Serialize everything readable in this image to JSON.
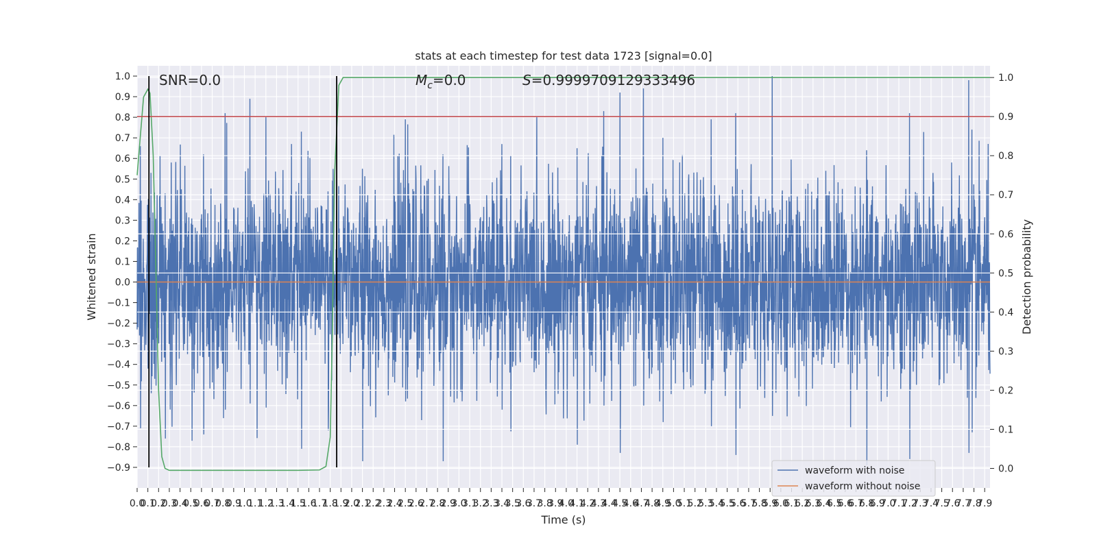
{
  "chart_data": {
    "type": "line",
    "title": "stats at each timestep for test data 1723 [signal=0.0]",
    "xlabel": "Time (s)",
    "ylabel": "Whitened strain",
    "y2label": "Detection probability",
    "annotations": {
      "snr": "SNR=0.0",
      "mc_symbol": "M",
      "mc_sub": "c",
      "mc_value": "=0.0",
      "s_symbol": "S",
      "s_value": "=0.9999709129333496"
    },
    "xlim": [
      0.0,
      7.95
    ],
    "ylim": [
      -1.0,
      1.05
    ],
    "y2lim": [
      -0.05,
      1.03
    ],
    "x_ticks": [
      "0.0",
      "0.1",
      "0.2",
      "0.3",
      "0.4",
      "0.5",
      "0.6",
      "0.7",
      "0.8",
      "0.9",
      "1.0",
      "1.1",
      "1.2",
      "1.3",
      "1.4",
      "1.5",
      "1.6",
      "1.7",
      "1.8",
      "1.9",
      "2.0",
      "2.1",
      "2.2",
      "2.3",
      "2.4",
      "2.5",
      "2.6",
      "2.7",
      "2.8",
      "2.9",
      "3.0",
      "3.1",
      "3.2",
      "3.3",
      "3.4",
      "3.5",
      "3.6",
      "3.7",
      "3.8",
      "3.9",
      "4.0",
      "4.1",
      "4.2",
      "4.3",
      "4.4",
      "4.5",
      "4.6",
      "4.7",
      "4.8",
      "4.9",
      "5.0",
      "5.1",
      "5.2",
      "5.3",
      "5.4",
      "5.5",
      "5.6",
      "5.7",
      "5.8",
      "5.9",
      "6.0",
      "6.1",
      "6.2",
      "6.3",
      "6.4",
      "6.5",
      "6.6",
      "6.7",
      "6.8",
      "6.9",
      "7.0",
      "7.1",
      "7.2",
      "7.3",
      "7.4",
      "7.5",
      "7.6",
      "7.7",
      "7.8",
      "7.9"
    ],
    "y_ticks": [
      "-0.9",
      "-0.8",
      "-0.7",
      "-0.6",
      "-0.5",
      "-0.4",
      "-0.3",
      "-0.2",
      "-0.1",
      "0.0",
      "0.1",
      "0.2",
      "0.3",
      "0.4",
      "0.5",
      "0.6",
      "0.7",
      "0.8",
      "0.9",
      "1.0"
    ],
    "y2_ticks": [
      "0.0",
      "0.1",
      "0.2",
      "0.3",
      "0.4",
      "0.5",
      "0.6",
      "0.7",
      "0.8",
      "0.9",
      "1.0"
    ],
    "series": [
      {
        "name": "waveform with noise",
        "color": "#4c72b0",
        "kind": "noise",
        "sigma": 0.24,
        "envelope_peaks": [
          [
            0.03,
            0.66,
            -0.71
          ],
          [
            0.13,
            0.53,
            -0.54
          ],
          [
            0.26,
            0.43,
            -0.76
          ],
          [
            0.62,
            0.62,
            -0.74
          ],
          [
            0.82,
            0.82,
            -0.62
          ],
          [
            1.05,
            0.89,
            -0.59
          ],
          [
            1.2,
            0.8,
            -0.61
          ],
          [
            1.53,
            0.73,
            -0.81
          ],
          [
            1.78,
            0.44,
            -0.72
          ],
          [
            2.1,
            0.55,
            -0.87
          ],
          [
            2.5,
            0.79,
            -0.58
          ],
          [
            2.85,
            0.62,
            -0.87
          ],
          [
            3.4,
            0.67,
            -0.62
          ],
          [
            4.1,
            0.65,
            -0.79
          ],
          [
            4.35,
            0.83,
            -0.6
          ],
          [
            4.5,
            0.92,
            -0.83
          ],
          [
            4.72,
            0.94,
            -0.6
          ],
          [
            4.9,
            0.7,
            -0.68
          ],
          [
            5.35,
            0.79,
            -0.7
          ],
          [
            5.58,
            0.82,
            -0.84
          ],
          [
            5.92,
            1.0,
            -0.65
          ],
          [
            6.8,
            0.64,
            -0.89
          ],
          [
            7.2,
            0.82,
            -0.86
          ],
          [
            7.75,
            0.98,
            -0.83
          ],
          [
            7.78,
            0.74,
            -0.73
          ]
        ]
      },
      {
        "name": "waveform without noise",
        "color": "#dd8452",
        "axis": "left",
        "x": [
          0.0,
          7.95
        ],
        "y": [
          0.0,
          0.0
        ]
      },
      {
        "color": "#55a868",
        "axis": "right",
        "x": [
          0.0,
          0.03,
          0.06,
          0.1,
          0.12,
          0.15,
          0.18,
          0.2,
          0.23,
          0.26,
          0.3,
          0.5,
          1.0,
          1.5,
          1.7,
          1.76,
          1.8,
          1.82,
          1.84,
          1.88,
          1.92,
          2.0,
          3.0,
          5.0,
          7.95
        ],
        "y": [
          0.75,
          0.85,
          0.95,
          0.97,
          0.96,
          0.8,
          0.45,
          0.2,
          0.03,
          0.0,
          -0.005,
          -0.005,
          -0.005,
          -0.005,
          -0.004,
          0.005,
          0.08,
          0.35,
          0.75,
          0.98,
          1.0,
          1.0,
          1.0,
          1.0,
          1.0
        ]
      },
      {
        "color": "#c44e52",
        "axis": "right",
        "x": [
          0.0,
          7.95
        ],
        "y": [
          0.9,
          0.9
        ]
      }
    ],
    "vlines": [
      0.11,
      1.86
    ],
    "grid": true,
    "legend_position": "lower-right"
  }
}
